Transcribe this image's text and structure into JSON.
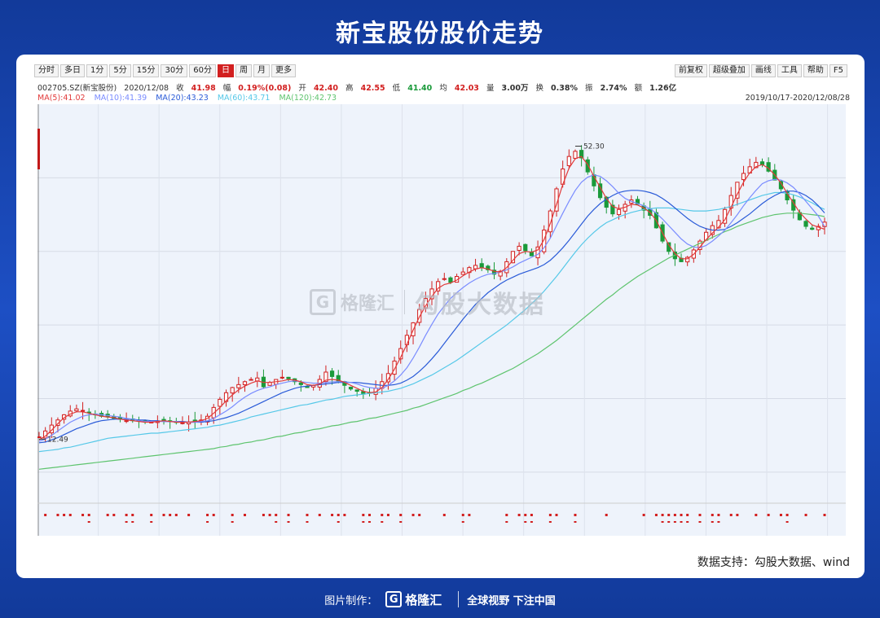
{
  "title": "新宝股份股价走势",
  "toolbar": {
    "left": [
      "分时",
      "多日",
      "1分",
      "5分",
      "15分",
      "30分",
      "60分",
      "日",
      "周",
      "月",
      "更多"
    ],
    "active_index": 7,
    "right": [
      "前复权",
      "超级叠加",
      "画线",
      "工具",
      "帮助",
      "F5"
    ]
  },
  "info": {
    "code": "002705.SZ(新宝股份)",
    "date": "2020/12/08",
    "close_label": "收",
    "close": "41.98",
    "change_label": "幅",
    "change": "0.19%(0.08)",
    "open_label": "开",
    "open": "42.40",
    "high_label": "高",
    "high": "42.55",
    "low_label": "低",
    "low": "41.40",
    "avg_label": "均",
    "avg": "42.03",
    "volume_label": "量",
    "volume": "3.00万",
    "turnover_label": "换",
    "turnover": "0.38%",
    "amplitude_label": "振",
    "amplitude": "2.74%",
    "amount_label": "额",
    "amount": "1.26亿"
  },
  "ma": {
    "ma5": "MA(5):41.02",
    "ma10": "MA(10):41.39",
    "ma20": "MA(20):43.23",
    "ma60": "MA(60):43.71",
    "ma120": "MA(120):42.73"
  },
  "range": "2019/10/17-2020/12/08/28",
  "colors": {
    "up": "#d21f1f",
    "down": "#1a9a3a",
    "ma5": "#e23a3a",
    "ma10": "#7a8cff",
    "ma20": "#2a5bd8",
    "ma60": "#55c8e8",
    "ma120": "#5ec46e"
  },
  "watermark": {
    "brand": "格隆汇",
    "text": "勾股大数据"
  },
  "source": "数据支持：勾股大数据、wind",
  "footer": {
    "made_by": "图片制作：",
    "brand": "格隆汇",
    "slogan": "全球视野 下注中国"
  },
  "chart_data": {
    "type": "candlestick",
    "x_range": [
      "2019/10/17",
      "2020/12/08"
    ],
    "ylim": [
      6,
      58
    ],
    "annotations": [
      {
        "label": "52.30",
        "value": 52.3,
        "kind": "high"
      },
      {
        "label": "12.49",
        "value": 12.49,
        "kind": "low"
      }
    ],
    "price_series": [
      12.8,
      13.6,
      14.4,
      15.1,
      15.8,
      16.3,
      16.6,
      16.4,
      16.1,
      15.9,
      15.6,
      15.5,
      15.3,
      15.2,
      15.0,
      15.0,
      14.9,
      14.8,
      14.8,
      14.9,
      15.0,
      14.9,
      14.8,
      14.7,
      14.8,
      14.9,
      15.1,
      15.6,
      16.8,
      17.9,
      18.8,
      19.5,
      19.9,
      20.3,
      20.6,
      20.8,
      19.6,
      20.2,
      20.6,
      20.9,
      20.7,
      20.3,
      19.9,
      19.5,
      19.8,
      20.6,
      21.6,
      21.0,
      20.4,
      19.8,
      19.3,
      19.0,
      18.6,
      18.8,
      19.4,
      20.3,
      21.4,
      23.1,
      24.8,
      26.6,
      28.3,
      30.1,
      31.6,
      32.9,
      33.9,
      34.3,
      33.8,
      34.6,
      35.2,
      35.8,
      36.1,
      35.8,
      35.5,
      34.9,
      35.3,
      36.6,
      38.0,
      38.7,
      38.1,
      37.4,
      38.6,
      40.9,
      43.5,
      46.5,
      49.2,
      50.9,
      51.6,
      50.7,
      48.8,
      46.9,
      45.3,
      44.0,
      43.1,
      43.7,
      44.4,
      45.0,
      44.4,
      43.6,
      42.9,
      41.2,
      39.4,
      38.0,
      37.0,
      36.6,
      37.2,
      38.2,
      39.4,
      40.6,
      41.5,
      42.2,
      43.7,
      45.6,
      47.4,
      48.6,
      49.5,
      50.1,
      49.8,
      48.9,
      47.7,
      46.5,
      45.0,
      43.6,
      42.3,
      41.4,
      41.0,
      41.4,
      41.98
    ],
    "ma5": [
      12.4,
      12.9,
      13.7,
      14.6,
      15.4,
      15.9,
      16.2,
      16.2,
      16.0,
      15.8,
      15.6,
      15.5,
      15.4,
      15.2,
      15.1,
      15.0,
      14.9,
      14.8,
      14.8,
      14.9,
      15.0,
      14.9,
      14.8,
      14.8,
      14.8,
      14.9,
      15.0,
      15.3,
      16.0,
      16.8,
      17.7,
      18.5,
      19.2,
      19.7,
      20.1,
      20.4,
      20.2,
      20.2,
      20.3,
      20.4,
      20.6,
      20.5,
      20.3,
      19.9,
      19.8,
      20.0,
      20.5,
      20.6,
      20.5,
      20.2,
      19.8,
      19.4,
      19.0,
      18.8,
      18.9,
      19.5,
      20.6,
      22.0,
      23.6,
      25.4,
      27.3,
      29.1,
      30.6,
      31.9,
      33.0,
      33.5,
      33.7,
      34.1,
      34.7,
      35.2,
      35.6,
      35.8,
      35.6,
      35.3,
      35.2,
      35.8,
      36.8,
      37.7,
      38.0,
      37.9,
      38.2,
      39.6,
      41.8,
      44.4,
      47.1,
      49.3,
      50.6,
      50.9,
      49.8,
      48.2,
      46.7,
      45.2,
      44.1,
      43.8,
      44.0,
      44.4,
      44.3,
      43.9,
      43.3,
      42.2,
      40.5,
      38.9,
      37.7,
      37.0,
      37.0,
      37.6,
      38.6,
      39.6,
      40.5,
      41.3,
      42.3,
      44.0,
      45.8,
      47.4,
      48.7,
      49.5,
      49.8,
      49.3,
      48.4,
      47.3,
      45.9,
      44.6,
      43.3,
      42.4,
      41.6,
      41.3,
      41.02
    ],
    "ma10": [
      12.2,
      12.5,
      13.0,
      13.6,
      14.2,
      14.8,
      15.2,
      15.6,
      15.8,
      15.9,
      15.8,
      15.7,
      15.6,
      15.5,
      15.3,
      15.2,
      15.0,
      14.9,
      14.9,
      14.9,
      14.9,
      14.9,
      14.9,
      14.8,
      14.8,
      14.8,
      14.9,
      15.0,
      15.3,
      15.8,
      16.3,
      16.9,
      17.6,
      18.2,
      18.7,
      19.1,
      19.4,
      19.6,
      19.9,
      20.1,
      20.3,
      20.4,
      20.3,
      20.2,
      20.1,
      20.1,
      20.2,
      20.3,
      20.3,
      20.3,
      20.2,
      20.0,
      19.7,
      19.5,
      19.4,
      19.4,
      19.8,
      20.4,
      21.2,
      22.2,
      23.5,
      25.0,
      26.6,
      28.1,
      29.5,
      30.6,
      31.6,
      32.4,
      33.1,
      33.7,
      34.2,
      34.6,
      34.9,
      35.0,
      35.2,
      35.5,
      35.9,
      36.4,
      36.8,
      37.2,
      37.6,
      38.5,
      39.8,
      41.5,
      43.2,
      44.8,
      46.3,
      47.4,
      48.1,
      48.4,
      48.2,
      47.6,
      46.8,
      45.9,
      45.2,
      44.8,
      44.5,
      44.2,
      43.8,
      43.2,
      42.4,
      41.5,
      40.6,
      39.7,
      39.0,
      38.6,
      38.5,
      38.8,
      39.4,
      40.1,
      40.9,
      41.9,
      43.0,
      44.2,
      45.3,
      46.3,
      47.2,
      47.6,
      47.8,
      47.7,
      47.3,
      46.7,
      45.8,
      44.8,
      43.8,
      42.8,
      41.39
    ],
    "ma20": [
      12.0,
      12.1,
      12.4,
      12.7,
      13.1,
      13.5,
      13.9,
      14.2,
      14.5,
      14.8,
      15.0,
      15.1,
      15.2,
      15.2,
      15.2,
      15.2,
      15.1,
      15.1,
      15.0,
      15.0,
      14.9,
      14.9,
      14.9,
      14.9,
      14.8,
      14.8,
      14.8,
      14.9,
      15.0,
      15.2,
      15.4,
      15.7,
      16.0,
      16.4,
      16.8,
      17.2,
      17.6,
      18.0,
      18.4,
      18.8,
      19.1,
      19.4,
      19.6,
      19.7,
      19.8,
      19.9,
      20.0,
      20.1,
      20.2,
      20.2,
      20.2,
      20.2,
      20.1,
      20.0,
      19.9,
      19.8,
      19.8,
      19.9,
      20.1,
      20.5,
      21.0,
      21.7,
      22.5,
      23.4,
      24.4,
      25.5,
      26.6,
      27.7,
      28.8,
      29.8,
      30.8,
      31.6,
      32.4,
      33.0,
      33.6,
      34.1,
      34.5,
      34.9,
      35.2,
      35.5,
      35.8,
      36.2,
      36.8,
      37.6,
      38.5,
      39.5,
      40.6,
      41.7,
      42.8,
      43.7,
      44.5,
      45.1,
      45.6,
      46.0,
      46.2,
      46.3,
      46.3,
      46.2,
      46.0,
      45.7,
      45.2,
      44.6,
      43.9,
      43.2,
      42.5,
      41.9,
      41.4,
      41.1,
      40.9,
      40.9,
      41.0,
      41.4,
      41.9,
      42.5,
      43.1,
      43.8,
      44.5,
      45.1,
      45.6,
      46.0,
      46.2,
      46.2,
      46.0,
      45.6,
      45.0,
      44.2,
      43.23
    ],
    "ma60": [
      10.8,
      10.9,
      11.0,
      11.1,
      11.3,
      11.4,
      11.6,
      11.8,
      12.0,
      12.2,
      12.4,
      12.6,
      12.7,
      12.8,
      12.9,
      13.0,
      13.1,
      13.2,
      13.3,
      13.3,
      13.4,
      13.5,
      13.6,
      13.7,
      13.8,
      13.9,
      14.0,
      14.1,
      14.3,
      14.4,
      14.6,
      14.8,
      15.0,
      15.2,
      15.5,
      15.7,
      15.9,
      16.1,
      16.3,
      16.5,
      16.7,
      16.9,
      17.1,
      17.2,
      17.4,
      17.6,
      17.8,
      17.9,
      18.1,
      18.3,
      18.4,
      18.5,
      18.6,
      18.7,
      18.8,
      18.9,
      19.0,
      19.2,
      19.4,
      19.7,
      20.0,
      20.4,
      20.8,
      21.2,
      21.7,
      22.2,
      22.7,
      23.2,
      23.8,
      24.4,
      25.0,
      25.6,
      26.2,
      26.8,
      27.4,
      28.0,
      28.7,
      29.4,
      30.1,
      30.9,
      31.7,
      32.6,
      33.6,
      34.6,
      35.7,
      36.8,
      37.9,
      38.9,
      39.8,
      40.6,
      41.3,
      41.9,
      42.3,
      42.7,
      43.0,
      43.3,
      43.5,
      43.7,
      43.8,
      43.9,
      43.9,
      43.9,
      43.8,
      43.7,
      43.6,
      43.5,
      43.5,
      43.5,
      43.6,
      43.7,
      43.9,
      44.1,
      44.4,
      44.7,
      45.0,
      45.3,
      45.6,
      45.8,
      46.0,
      46.0,
      45.9,
      45.7,
      45.4,
      45.0,
      44.6,
      44.1,
      43.71
    ],
    "ma120": [
      8.4,
      8.5,
      8.6,
      8.7,
      8.8,
      8.9,
      9.0,
      9.1,
      9.2,
      9.3,
      9.4,
      9.5,
      9.6,
      9.7,
      9.8,
      9.9,
      10.0,
      10.1,
      10.2,
      10.3,
      10.4,
      10.5,
      10.6,
      10.7,
      10.8,
      10.9,
      11.0,
      11.1,
      11.2,
      11.4,
      11.5,
      11.7,
      11.8,
      12.0,
      12.1,
      12.3,
      12.4,
      12.6,
      12.8,
      12.9,
      13.1,
      13.3,
      13.4,
      13.6,
      13.8,
      13.9,
      14.1,
      14.3,
      14.4,
      14.6,
      14.8,
      14.9,
      15.1,
      15.3,
      15.4,
      15.6,
      15.8,
      16.0,
      16.2,
      16.4,
      16.7,
      16.9,
      17.2,
      17.5,
      17.8,
      18.1,
      18.4,
      18.7,
      19.1,
      19.4,
      19.8,
      20.1,
      20.5,
      20.9,
      21.3,
      21.7,
      22.1,
      22.6,
      23.1,
      23.6,
      24.1,
      24.7,
      25.3,
      25.9,
      26.6,
      27.3,
      28.0,
      28.7,
      29.4,
      30.1,
      30.8,
      31.5,
      32.1,
      32.8,
      33.4,
      34.0,
      34.6,
      35.1,
      35.6,
      36.1,
      36.6,
      37.1,
      37.5,
      37.9,
      38.3,
      38.7,
      39.1,
      39.5,
      39.9,
      40.3,
      40.7,
      41.0,
      41.4,
      41.7,
      42.0,
      42.3,
      42.6,
      42.8,
      43.0,
      43.1,
      43.2,
      43.2,
      43.2,
      43.1,
      43.0,
      42.9,
      42.73
    ]
  }
}
